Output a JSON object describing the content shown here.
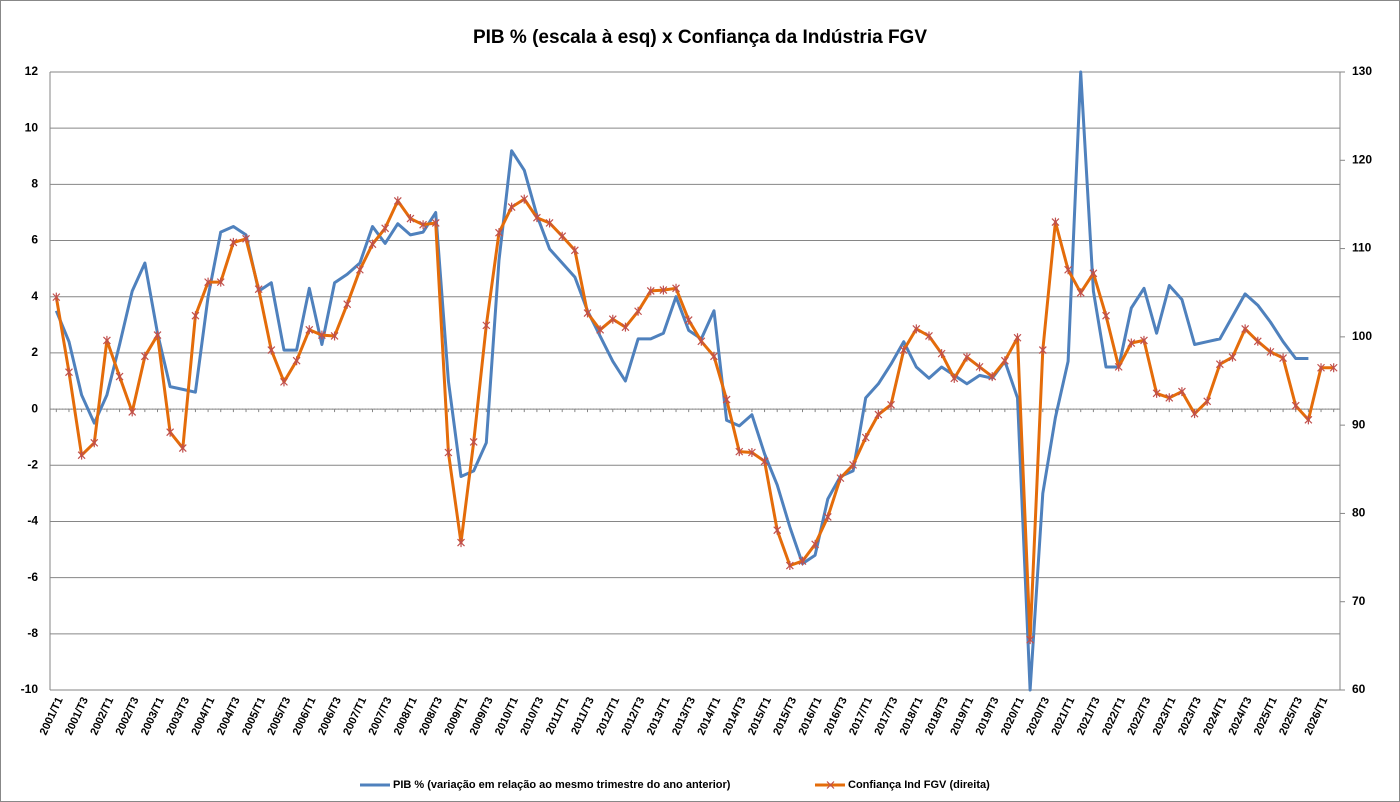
{
  "chart_data": {
    "type": "line",
    "title": "PIB % (escala à esq) x Confiança da Indústria FGV",
    "categories": [
      "2001/T1",
      null,
      "2001/T3",
      null,
      "2002/T1",
      null,
      "2002/T3",
      null,
      "2003/T1",
      null,
      "2003/T3",
      null,
      "2004/T1",
      null,
      "2004/T3",
      null,
      "2005/T1",
      null,
      "2005/T3",
      null,
      "2006/T1",
      null,
      "2006/T3",
      null,
      "2007/T1",
      null,
      "2007/T3",
      null,
      "2008/T1",
      null,
      "2008/T3",
      null,
      "2009/T1",
      null,
      "2009/T3",
      null,
      "2010/T1",
      null,
      "2010/T3",
      null,
      "2011/T1",
      null,
      "2011/T3",
      null,
      "2012/T1",
      null,
      "2012/T3",
      null,
      "2013/T1",
      null,
      "2013/T3",
      null,
      "2014/T1",
      null,
      "2014/T3",
      null,
      "2015/T1",
      null,
      "2015/T3",
      null,
      "2016/T1",
      null,
      "2016/T3",
      null,
      "2017/T1",
      null,
      "2017/T3",
      null,
      "2018/T1",
      null,
      "2018/T3",
      null,
      "2019/T1",
      null,
      "2019/T3",
      null,
      "2020/T1",
      null,
      "2020/T3",
      null,
      "2021/T1",
      null,
      "2021/T3",
      null,
      "2022/T1",
      null,
      "2022/T3",
      null,
      "2023/T1",
      null,
      "2023/T3",
      null,
      "2024/T1",
      null,
      "2024/T3",
      null,
      "2025/T1",
      null,
      "2025/T3",
      null,
      "2026/T1",
      null
    ],
    "series": [
      {
        "name": "PIB % (variação em relação ao mesmo trimestre do ano anterior)",
        "color": "#4f81bd",
        "values": [
          3.5,
          2.4,
          0.5,
          -0.5,
          0.5,
          2.3,
          4.2,
          5.2,
          2.7,
          0.8,
          0.7,
          0.6,
          4.0,
          6.3,
          6.5,
          6.2,
          4.2,
          4.5,
          2.1,
          2.1,
          4.3,
          2.3,
          4.5,
          4.8,
          5.2,
          6.5,
          5.9,
          6.6,
          6.2,
          6.3,
          7.0,
          1.0,
          -2.4,
          -2.2,
          -1.2,
          5.3,
          9.2,
          8.5,
          6.9,
          5.7,
          5.2,
          4.7,
          3.5,
          2.6,
          1.7,
          1.0,
          2.5,
          2.5,
          2.7,
          4.0,
          2.8,
          2.5,
          3.5,
          -0.4,
          -0.6,
          -0.2,
          -1.6,
          -2.7,
          -4.2,
          -5.5,
          -5.2,
          -3.2,
          -2.4,
          -2.2,
          0.4,
          0.9,
          1.6,
          2.4,
          1.5,
          1.1,
          1.5,
          1.2,
          0.9,
          1.2,
          1.1,
          1.7,
          0.4,
          -10.0,
          -3.0,
          -0.3,
          1.7,
          12.0,
          4.2,
          1.5,
          1.5,
          3.6,
          4.3,
          2.7,
          4.4,
          3.9,
          2.3,
          2.4,
          2.5,
          3.3,
          4.1,
          3.7,
          3.1,
          2.4,
          1.8,
          1.8,
          null,
          null
        ]
      },
      {
        "name": "Confiança Ind FGV (direita)",
        "color": "#e46c0a",
        "axis": "y2",
        "marker": "x",
        "marker_color": "#c0504d",
        "values": [
          104.5,
          96.0,
          86.6,
          88.0,
          99.6,
          95.5,
          91.5,
          97.8,
          100.2,
          89.2,
          87.4,
          102.4,
          106.2,
          106.2,
          110.7,
          111.1,
          105.4,
          98.5,
          94.9,
          97.3,
          100.8,
          100.2,
          100.1,
          103.7,
          107.6,
          110.5,
          112.3,
          115.4,
          113.4,
          112.7,
          112.9,
          86.9,
          76.7,
          88.1,
          101.3,
          111.8,
          114.7,
          115.6,
          113.5,
          112.9,
          111.4,
          109.8,
          102.7,
          100.8,
          102.0,
          101.1,
          102.9,
          105.2,
          105.3,
          105.5,
          101.9,
          99.5,
          97.8,
          92.9,
          87.0,
          86.9,
          85.9,
          78.1,
          74.1,
          74.6,
          76.5,
          79.6,
          84.0,
          85.5,
          88.6,
          91.2,
          92.3,
          98.5,
          100.9,
          100.1,
          98.1,
          95.3,
          97.7,
          96.6,
          95.5,
          97.3,
          99.9,
          65.7,
          98.5,
          113.0,
          107.6,
          105.0,
          107.2,
          102.4,
          96.6,
          99.3,
          99.6,
          93.6,
          93.1,
          93.8,
          91.3,
          92.7,
          96.9,
          97.7,
          100.9,
          99.5,
          98.3,
          97.6,
          92.2,
          90.6,
          96.5,
          96.5
        ]
      }
    ],
    "ylim": [
      -10,
      12
    ],
    "yticks": [
      -10,
      -8,
      -6,
      -4,
      -2,
      0,
      2,
      4,
      6,
      8,
      10,
      12
    ],
    "y2lim": [
      60,
      130
    ],
    "y2ticks": [
      60,
      70,
      80,
      90,
      100,
      110,
      120,
      130
    ],
    "grid": true,
    "legend": "bottom"
  }
}
